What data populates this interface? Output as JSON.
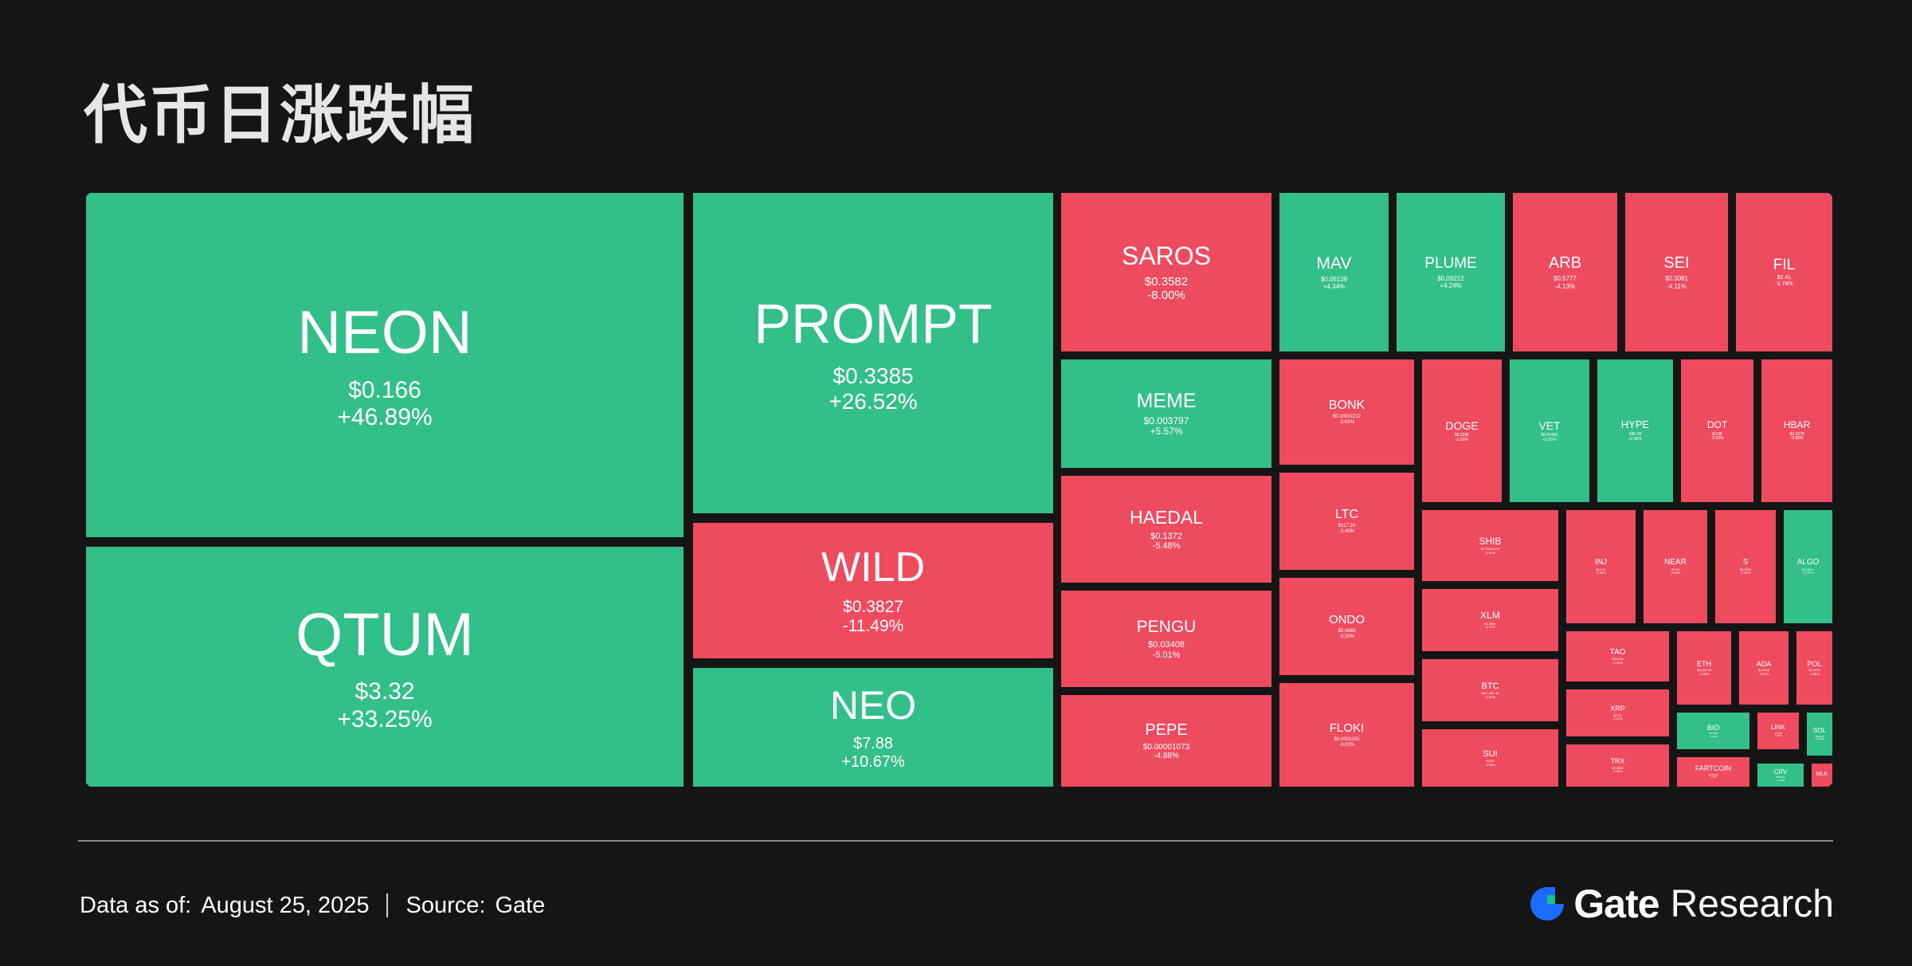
{
  "title": "代币日涨跌幅",
  "footer": {
    "data_label": "Data as of:",
    "date": "August  25, 2025",
    "source_label": "Source:",
    "source": "Gate"
  },
  "brand": {
    "name": "Gate",
    "suffix": "Research"
  },
  "colors": {
    "up": "#33bf89",
    "down": "#ef4b5f",
    "background": "#151515"
  },
  "chart_data": {
    "type": "treemap",
    "title": "代币日涨跌幅",
    "tiles": [
      {
        "symbol": "NEON",
        "price": "$0.166",
        "change": "+46.89%",
        "change_value": 46.89
      },
      {
        "symbol": "QTUM",
        "price": "$3.32",
        "change": "+33.25%",
        "change_value": 33.25
      },
      {
        "symbol": "PROMPT",
        "price": "$0.3385",
        "change": "+26.52%",
        "change_value": 26.52
      },
      {
        "symbol": "WILD",
        "price": "$0.3827",
        "change": "-11.49%",
        "change_value": -11.49
      },
      {
        "symbol": "NEO",
        "price": "$7.88",
        "change": "+10.67%",
        "change_value": 10.67
      },
      {
        "symbol": "SAROS",
        "price": "$0.3582",
        "change": "-8.00%",
        "change_value": -8.0
      },
      {
        "symbol": "MEME",
        "price": "$0.003797",
        "change": "+5.57%",
        "change_value": 5.57
      },
      {
        "symbol": "HAEDAL",
        "price": "$0.1372",
        "change": "-5.48%",
        "change_value": -5.48
      },
      {
        "symbol": "PENGU",
        "price": "$0.03408",
        "change": "-5.01%",
        "change_value": -5.01
      },
      {
        "symbol": "PEPE",
        "price": "$0.00001073",
        "change": "-4.88%",
        "change_value": -4.88
      },
      {
        "symbol": "MAV",
        "price": "$0.06138",
        "change": "+4.34%",
        "change_value": 4.34
      },
      {
        "symbol": "PLUME",
        "price": "$0.09212",
        "change": "+4.24%",
        "change_value": 4.24
      },
      {
        "symbol": "ARB",
        "price": "$0.5777",
        "change": "-4.13%",
        "change_value": -4.13
      },
      {
        "symbol": "SEI",
        "price": "$0.3081",
        "change": "-4.11%",
        "change_value": -4.11
      },
      {
        "symbol": "FIL",
        "price": "$2.41",
        "change": "-3.78%",
        "change_value": -3.78
      },
      {
        "symbol": "BONK",
        "price": "$0.00002212",
        "change": "-3.62%",
        "change_value": -3.62
      },
      {
        "symbol": "LTC",
        "price": "$117.24",
        "change": "-3.40%",
        "change_value": -3.4
      },
      {
        "symbol": "ONDO",
        "price": "$0.9683",
        "change": "-3.30%",
        "change_value": -3.3
      },
      {
        "symbol": "FLOKI",
        "price": "$0.0001033",
        "change": "-3.01%",
        "change_value": -3.01
      },
      {
        "symbol": "DOGE",
        "price": "$0.2286",
        "change": "-3.03%",
        "change_value": -3.03
      },
      {
        "symbol": "VET",
        "price": "$0.02465",
        "change": "+2.95%",
        "change_value": 2.95
      },
      {
        "symbol": "HYPE",
        "price": "$46.28",
        "change": "+2.92%",
        "change_value": 2.92
      },
      {
        "symbol": "DOT",
        "price": "$3.88",
        "change": "-2.90%",
        "change_value": -2.9
      },
      {
        "symbol": "HBAR",
        "price": "$0.2378",
        "change": "-2.88%",
        "change_value": -2.88
      },
      {
        "symbol": "SHIB",
        "price": "$0.00001270",
        "change": "-2.81%",
        "change_value": -2.81
      },
      {
        "symbol": "XLM",
        "price": "$0.3901",
        "change": "-2.77%",
        "change_value": -2.77
      },
      {
        "symbol": "BTC",
        "price": "$110,861.10",
        "change": "-2.69%",
        "change_value": -2.69
      },
      {
        "symbol": "SUI",
        "price": "$3.55",
        "change": "-2.59%",
        "change_value": -2.59
      },
      {
        "symbol": "INJ",
        "price": "$14.41",
        "change": "-2.53%",
        "change_value": -2.53
      },
      {
        "symbol": "NEAR",
        "price": "$2.59",
        "change": "-2.46%",
        "change_value": -2.46
      },
      {
        "symbol": "S",
        "price": "$0.3090",
        "change": "-2.41%",
        "change_value": -2.41
      },
      {
        "symbol": "ALGO",
        "price": "$0.2617",
        "change": "+2.37%",
        "change_value": 2.37
      },
      {
        "symbol": "TAO",
        "price": "$347.60",
        "change": "-2.30%",
        "change_value": -2.3
      },
      {
        "symbol": "XRP",
        "price": "$2.95",
        "change": "-2.21%",
        "change_value": -2.21
      },
      {
        "symbol": "TRX",
        "price": "$0.3594",
        "change": "-2.08%",
        "change_value": -2.08
      },
      {
        "symbol": "ETH",
        "price": "$4,633.78",
        "change": "-2.05%",
        "change_value": -2.05
      },
      {
        "symbol": "ADA",
        "price": "$0.8943",
        "change": "-1.97%",
        "change_value": -1.97
      },
      {
        "symbol": "POL",
        "price": "$0.2478",
        "change": "-1.88%",
        "change_value": -1.88
      },
      {
        "symbol": "BIO",
        "price": "$0.1298",
        "change": "+1.82%",
        "change_value": 1.82
      },
      {
        "symbol": "FARTCOIN",
        "price": "$0.8419",
        "change": "-1.75%",
        "change_value": -1.75
      },
      {
        "symbol": "LINK",
        "price": "$25.58",
        "change": "-1.62%",
        "change_value": -1.62
      },
      {
        "symbol": "SOL",
        "price": "$203.43",
        "change": "+1.55%",
        "change_value": 1.55
      },
      {
        "symbol": "CRV",
        "price": "$0.8922",
        "change": "+1.38%",
        "change_value": 1.38
      },
      {
        "symbol": "MLK",
        "price": "",
        "change": "",
        "change_value": -1.2
      }
    ]
  }
}
